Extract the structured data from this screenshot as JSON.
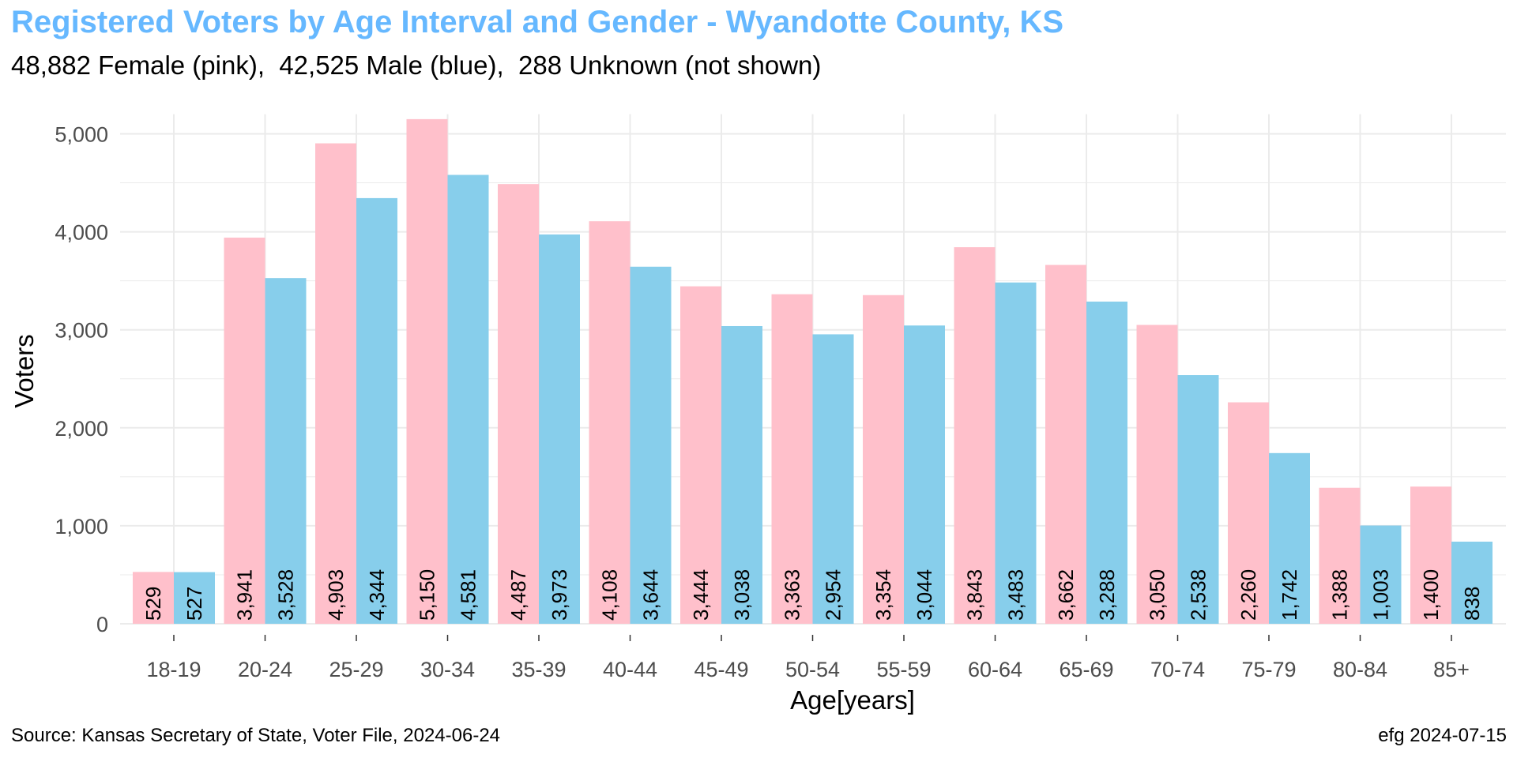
{
  "title": "Registered Voters by Age Interval and Gender - Wyandotte County, KS",
  "subtitle": "48,882 Female (pink),  42,525 Male (blue),  288 Unknown (not shown)",
  "caption_left": "Source: Kansas Secretary of State, Voter File, 2024-06-24",
  "caption_right": "efg 2024-07-15",
  "colors": {
    "female": "#ffc0cb",
    "male": "#87ceeb",
    "title": "#66b8ff",
    "grid": "#ebebeb"
  },
  "chart_data": {
    "type": "bar",
    "xlabel": "Age[years]",
    "ylabel": "Voters",
    "ylim": [
      0,
      5200
    ],
    "yticks": [
      0,
      1000,
      2000,
      3000,
      4000,
      5000
    ],
    "ytick_labels": [
      "0",
      "1,000",
      "2,000",
      "3,000",
      "4,000",
      "5,000"
    ],
    "grid": true,
    "categories": [
      "18-19",
      "20-24",
      "25-29",
      "30-34",
      "35-39",
      "40-44",
      "45-49",
      "50-54",
      "55-59",
      "60-64",
      "65-69",
      "70-74",
      "75-79",
      "80-84",
      "85+"
    ],
    "series": [
      {
        "values": [
          529,
          3941,
          4903,
          5150,
          4487,
          4108,
          3444,
          3363,
          3354,
          3843,
          3662,
          3050,
          2260,
          1388,
          1400
        ],
        "labels": [
          "529",
          "3,941",
          "4,903",
          "5,150",
          "4,487",
          "4,108",
          "3,444",
          "3,363",
          "3,354",
          "3,843",
          "3,662",
          "3,050",
          "2,260",
          "1,388",
          "1,400"
        ]
      },
      {
        "values": [
          527,
          3528,
          4344,
          4581,
          3973,
          3644,
          3038,
          2954,
          3044,
          3483,
          3288,
          2538,
          1742,
          1003,
          838
        ],
        "labels": [
          "527",
          "3,528",
          "4,344",
          "4,581",
          "3,973",
          "3,644",
          "3,038",
          "2,954",
          "3,044",
          "3,483",
          "3,288",
          "2,538",
          "1,742",
          "1,003",
          "838"
        ]
      }
    ]
  }
}
